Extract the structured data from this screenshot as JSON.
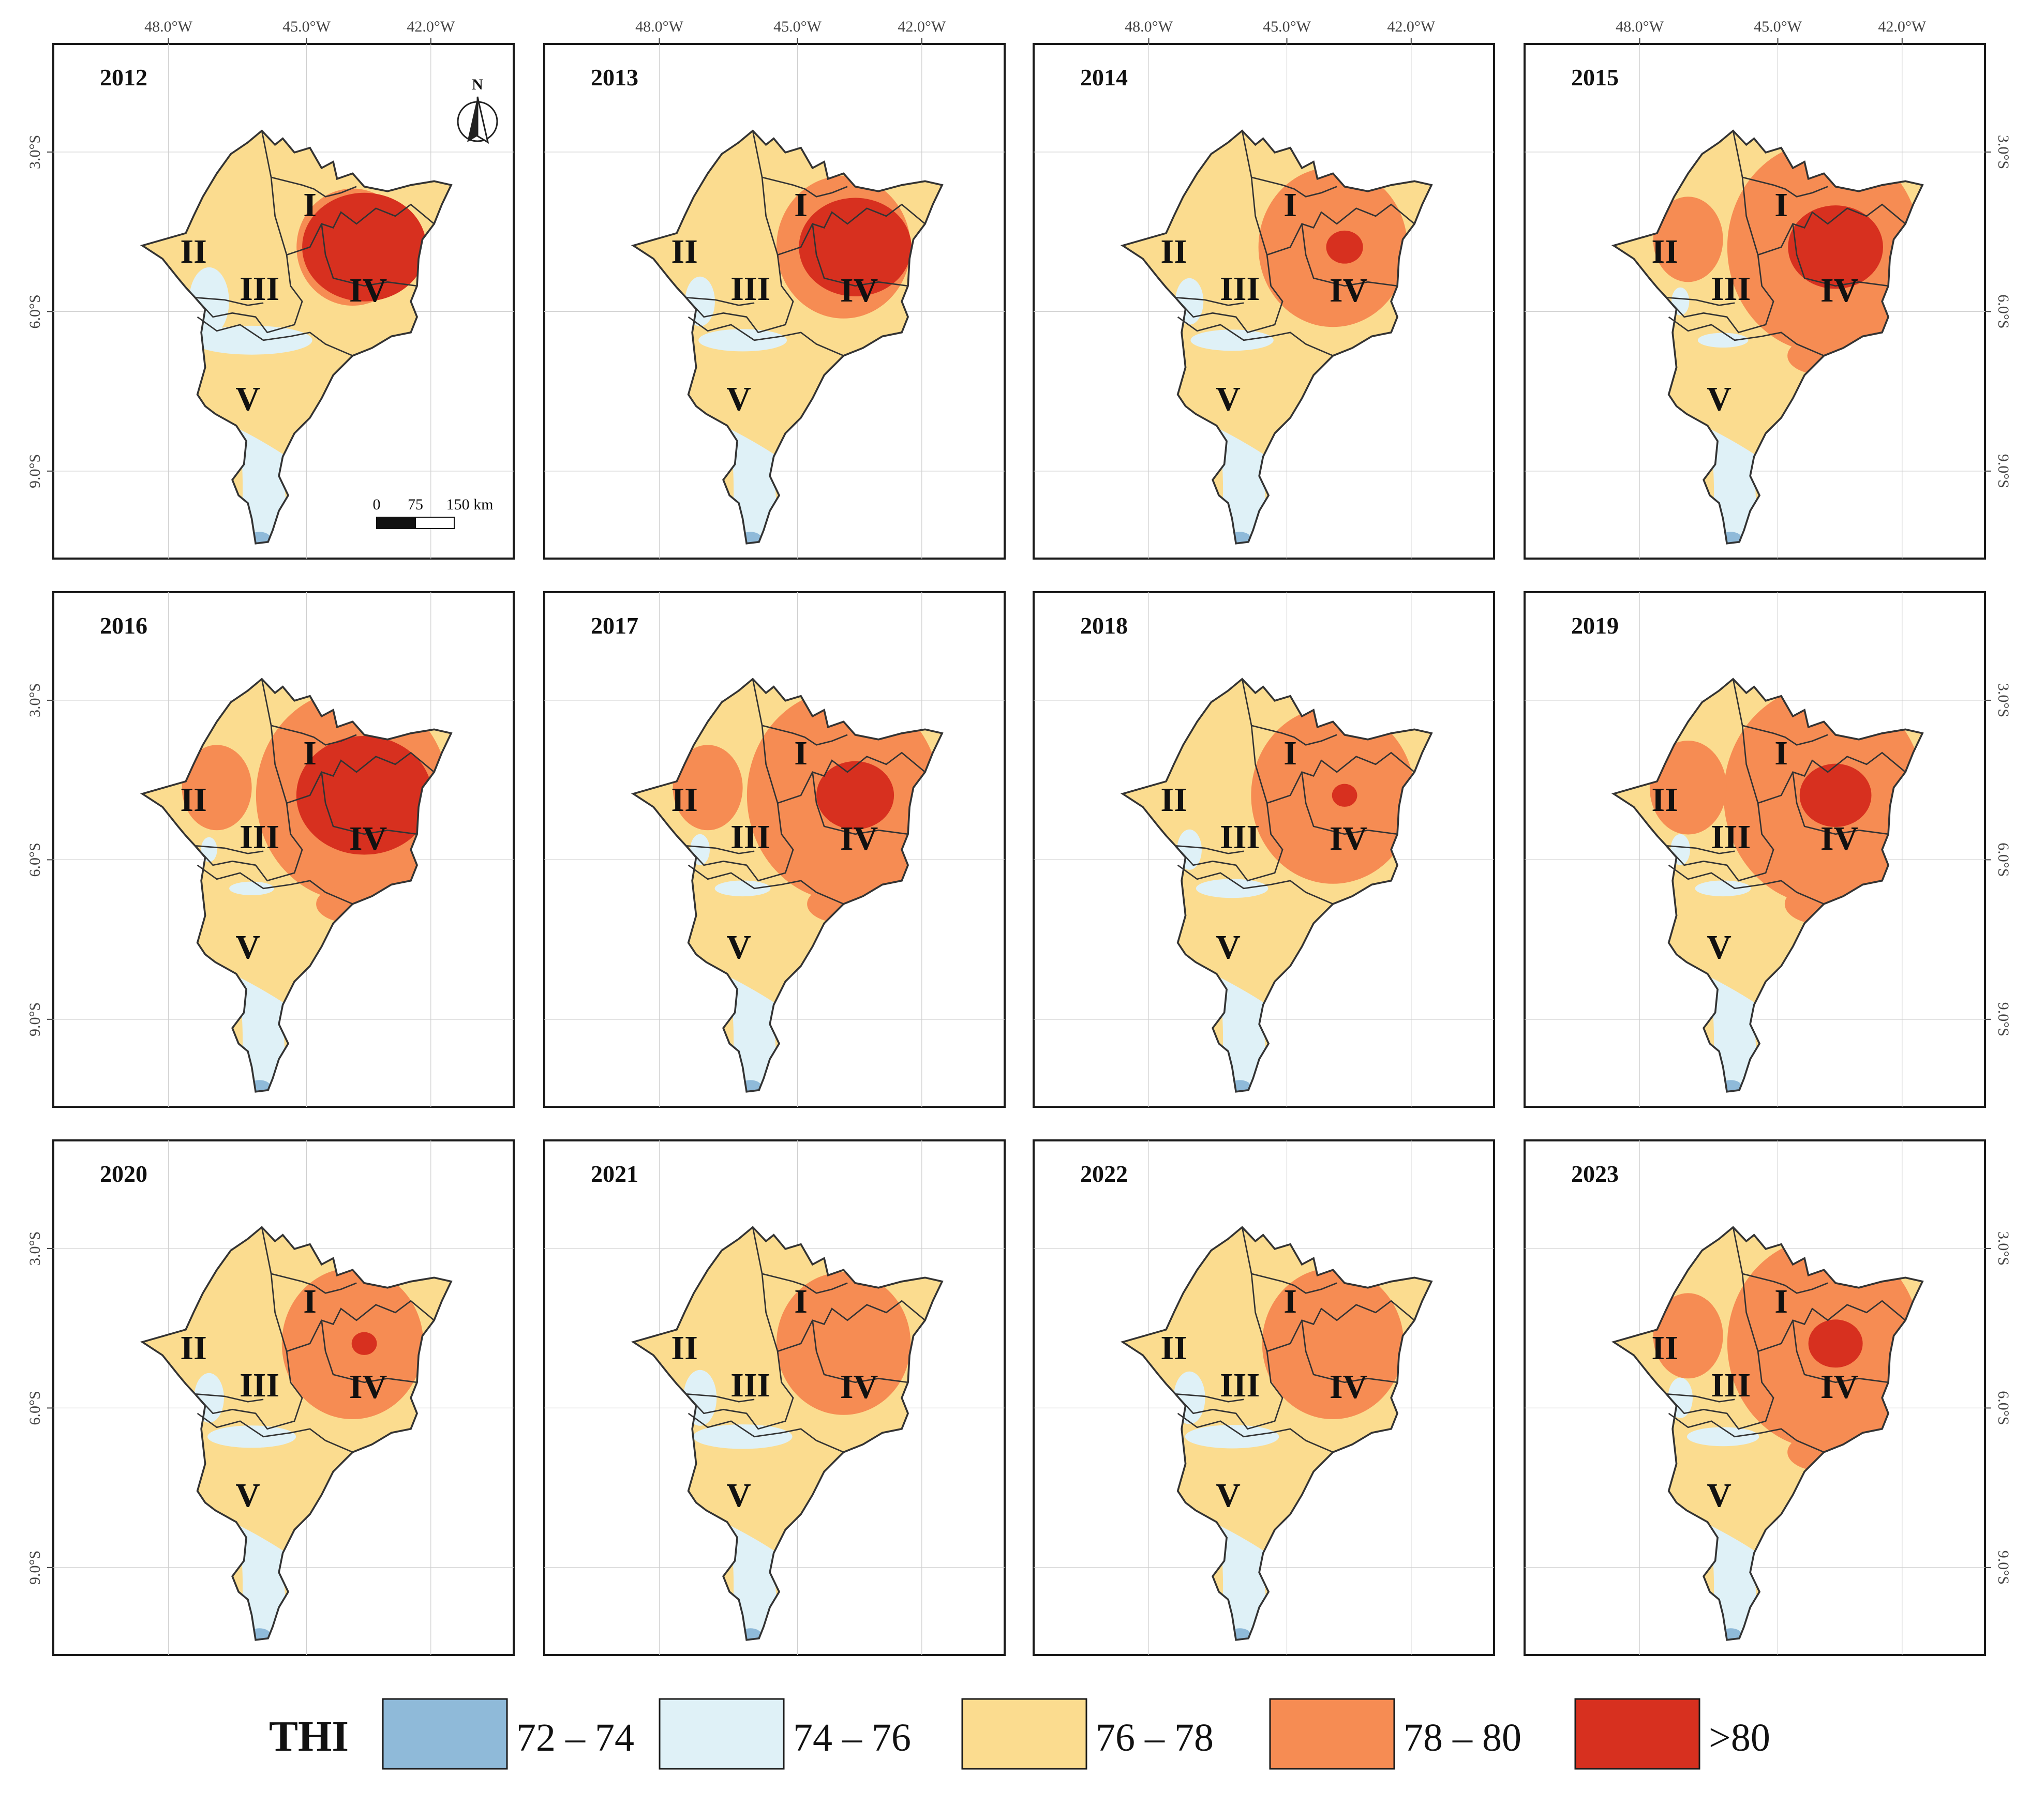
{
  "colors": {
    "thi_72_74": "#8fbad9",
    "thi_74_76": "#dff1f7",
    "thi_76_78": "#fbdc8f",
    "thi_78_80": "#f68c53",
    "thi_gt_80": "#d7301f",
    "frame": "#1a1a1a",
    "boundary": "#333333"
  },
  "axes": {
    "top_ticks": [
      "48.0°W",
      "45.0°W",
      "42.0°W"
    ],
    "left_ticks": [
      "3.0°S",
      "6.0°S",
      "9.0°S"
    ],
    "right_ticks": [
      "3.0°S",
      "6.0°S",
      "9.0°S"
    ]
  },
  "north_arrow": {
    "label": "N"
  },
  "scale_bar": {
    "labels": [
      "0",
      "75",
      "150 km"
    ]
  },
  "region_labels": [
    "I",
    "II",
    "III",
    "IV",
    "V"
  ],
  "panels": [
    {
      "year": "2012",
      "red": 1.0,
      "orange": 0.55,
      "light": 0.9
    },
    {
      "year": "2013",
      "red": 0.9,
      "orange": 0.7,
      "light": 0.6
    },
    {
      "year": "2014",
      "red": 0.25,
      "orange": 0.8,
      "light": 0.55
    },
    {
      "year": "2015",
      "red": 0.75,
      "orange": 1.1,
      "light": 0.25
    },
    {
      "year": "2016",
      "red": 1.1,
      "orange": 1.1,
      "light": 0.2
    },
    {
      "year": "2017",
      "red": 0.6,
      "orange": 1.1,
      "light": 0.3
    },
    {
      "year": "2018",
      "red": 0.15,
      "orange": 0.9,
      "light": 0.45
    },
    {
      "year": "2019",
      "red": 0.55,
      "orange": 1.15,
      "light": 0.3
    },
    {
      "year": "2020",
      "red": 0.15,
      "orange": 0.75,
      "light": 0.6
    },
    {
      "year": "2021",
      "red": 0.0,
      "orange": 0.7,
      "light": 0.7
    },
    {
      "year": "2022",
      "red": 0.0,
      "orange": 0.75,
      "light": 0.65
    },
    {
      "year": "2023",
      "red": 0.4,
      "orange": 1.1,
      "light": 0.45
    }
  ],
  "legend": {
    "title": "THI",
    "classes": [
      {
        "label": "72 – 74",
        "color": "#8fbad9"
      },
      {
        "label": "74 – 76",
        "color": "#dff1f7"
      },
      {
        "label": "76 – 78",
        "color": "#fbdc8f"
      },
      {
        "label": "78 – 80",
        "color": "#f68c53"
      },
      {
        "label": ">80",
        "color": "#d7301f"
      }
    ]
  }
}
